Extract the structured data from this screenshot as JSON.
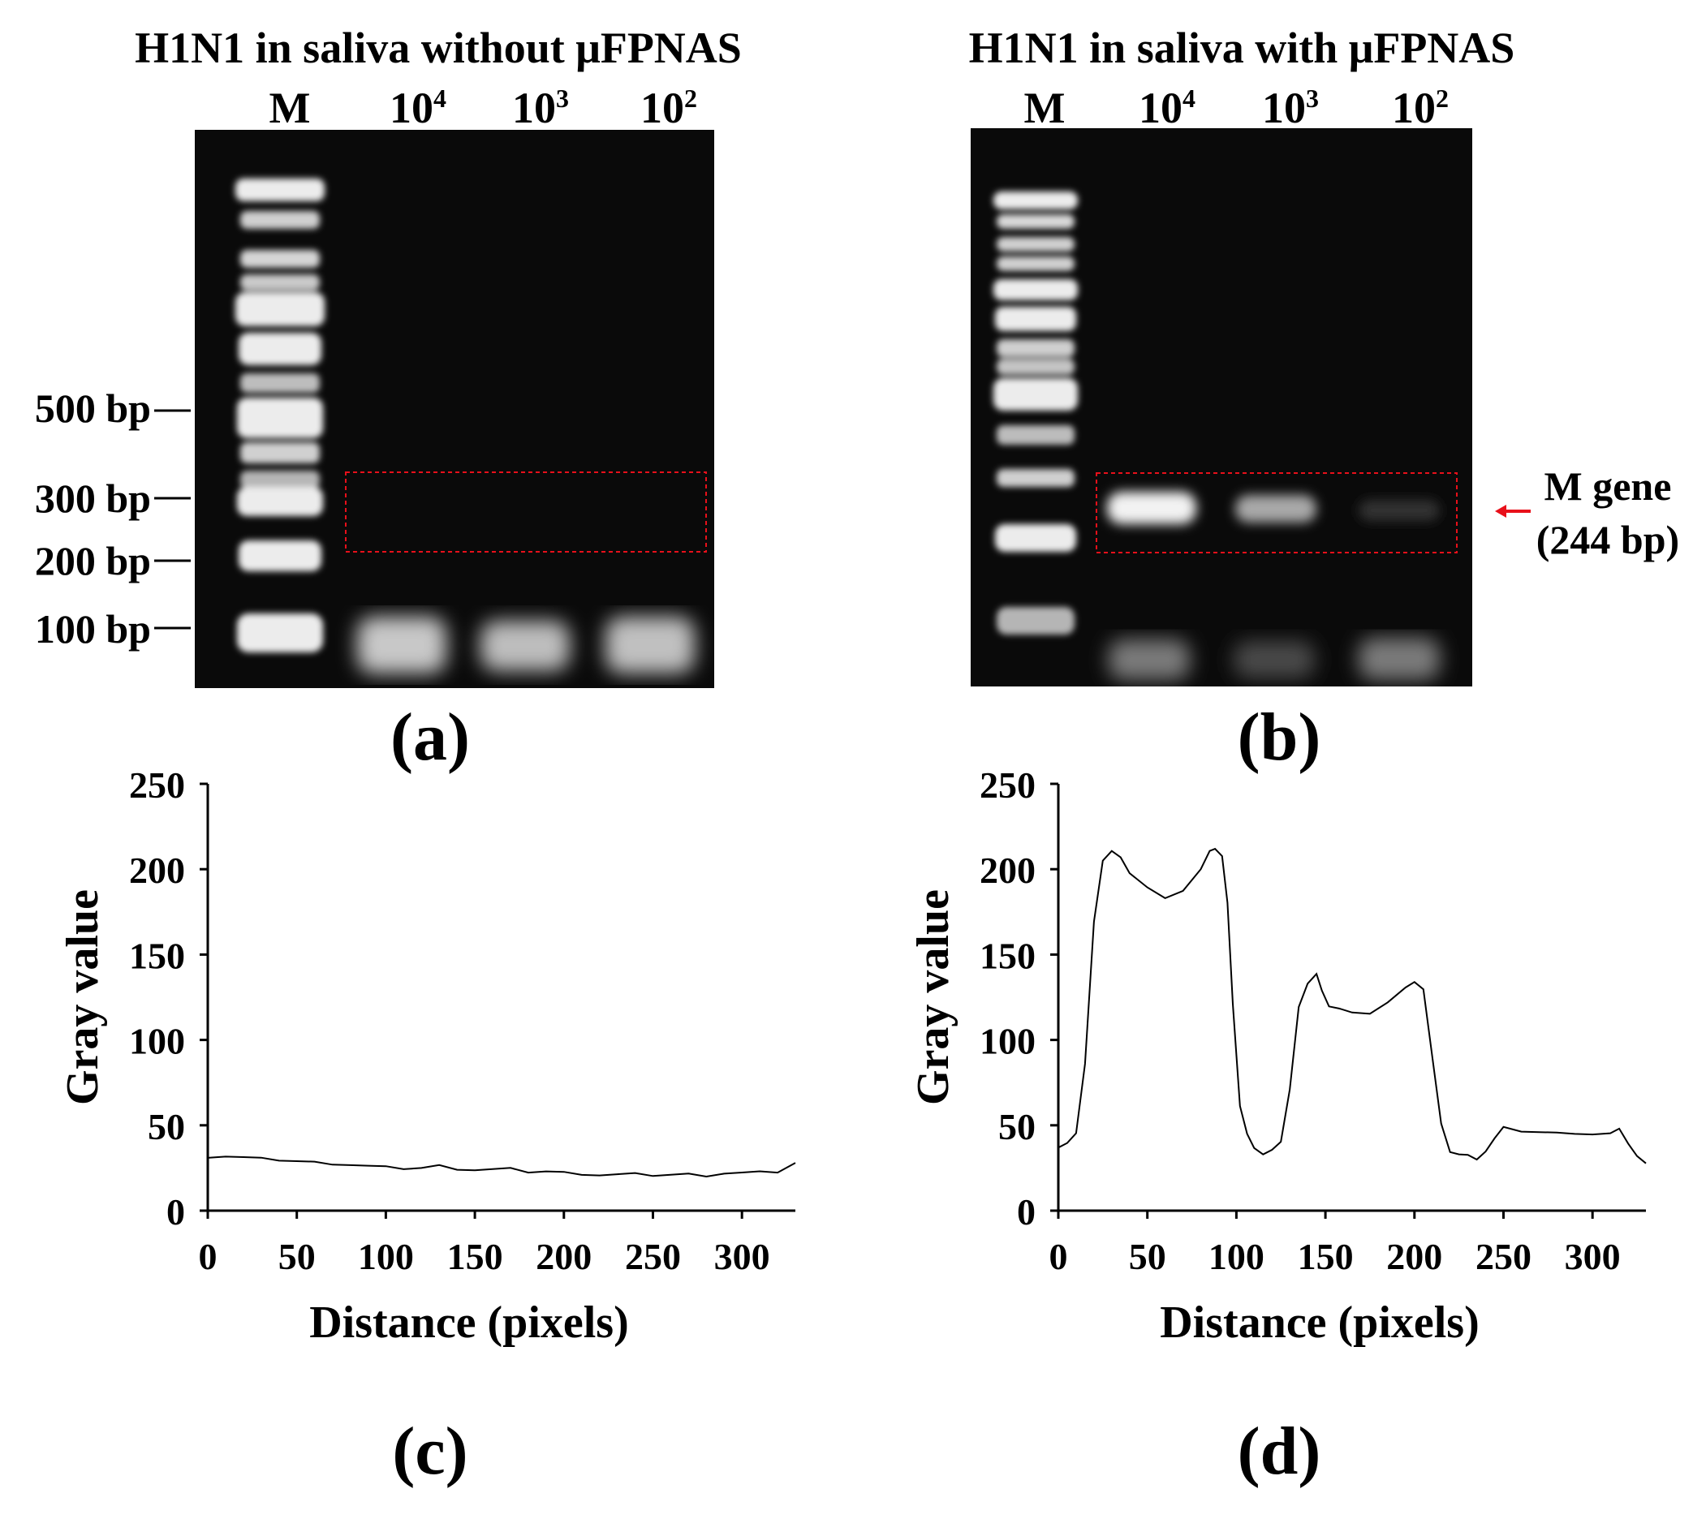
{
  "panels": {
    "a": {
      "label": "(a)",
      "title": "H1N1 in saliva without μFPNAS",
      "lanes": [
        {
          "base": "M",
          "exp": ""
        },
        {
          "base": "10",
          "exp": "4"
        },
        {
          "base": "10",
          "exp": "3"
        },
        {
          "base": "10",
          "exp": "2"
        }
      ],
      "bp_markers": [
        "500 bp",
        "300 bp",
        "200 bp",
        "100 bp"
      ]
    },
    "b": {
      "label": "(b)",
      "title": "H1N1 in saliva with μFPNAS",
      "lanes": [
        {
          "base": "M",
          "exp": ""
        },
        {
          "base": "10",
          "exp": "4"
        },
        {
          "base": "10",
          "exp": "3"
        },
        {
          "base": "10",
          "exp": "2"
        }
      ],
      "annotation": {
        "line1": "M gene",
        "line2": "(244 bp)"
      },
      "colors": {
        "arrow": "#e8101a",
        "roi_box": "#e8101a"
      }
    },
    "c": {
      "label": "(c)"
    },
    "d": {
      "label": "(d)"
    }
  },
  "chart_data": [
    {
      "id": "c",
      "type": "line",
      "xlabel": "Distance (pixels)",
      "ylabel": "Gray value",
      "xlim": [
        0,
        330
      ],
      "ylim": [
        0,
        250
      ],
      "xticks": [
        0,
        50,
        100,
        150,
        200,
        250,
        300
      ],
      "yticks": [
        0,
        50,
        100,
        150,
        200,
        250
      ],
      "grid": false,
      "series": [
        {
          "x": [
            0,
            10,
            20,
            30,
            40,
            50,
            60,
            70,
            80,
            90,
            100,
            110,
            120,
            130,
            140,
            150,
            160,
            170,
            180,
            190,
            200,
            210,
            220,
            230,
            240,
            250,
            260,
            270,
            280,
            290,
            300,
            310,
            320,
            330
          ],
          "y": [
            32,
            32,
            31,
            30,
            30,
            29,
            28,
            28,
            27,
            26,
            25,
            25,
            25,
            26,
            25,
            24,
            24,
            24,
            23,
            23,
            22,
            22,
            21,
            21,
            21,
            21,
            21,
            21,
            21,
            22,
            22,
            22,
            23,
            28
          ]
        }
      ]
    },
    {
      "id": "d",
      "type": "line",
      "xlabel": "Distance (pixels)",
      "ylabel": "Gray value",
      "xlim": [
        0,
        330
      ],
      "ylim": [
        0,
        250
      ],
      "xticks": [
        0,
        50,
        100,
        150,
        200,
        250,
        300
      ],
      "yticks": [
        0,
        50,
        100,
        150,
        200,
        250
      ],
      "grid": false,
      "series": [
        {
          "x": [
            0,
            5,
            10,
            15,
            20,
            25,
            30,
            35,
            40,
            50,
            60,
            70,
            80,
            85,
            88,
            92,
            95,
            98,
            102,
            106,
            110,
            115,
            120,
            125,
            130,
            135,
            140,
            145,
            148,
            152,
            158,
            165,
            175,
            185,
            195,
            200,
            205,
            210,
            215,
            220,
            225,
            230,
            235,
            240,
            245,
            250,
            260,
            270,
            280,
            290,
            300,
            310,
            315,
            320,
            325,
            330
          ],
          "y": [
            38,
            40,
            45,
            85,
            170,
            205,
            210,
            208,
            198,
            189,
            182,
            188,
            200,
            210,
            213,
            208,
            180,
            120,
            62,
            45,
            36,
            34,
            36,
            40,
            70,
            120,
            133,
            138,
            130,
            120,
            118,
            115,
            116,
            122,
            130,
            135,
            130,
            90,
            50,
            35,
            33,
            32,
            31,
            35,
            42,
            48,
            47,
            46,
            45,
            46,
            45,
            45,
            47,
            40,
            32,
            27
          ]
        }
      ]
    }
  ]
}
